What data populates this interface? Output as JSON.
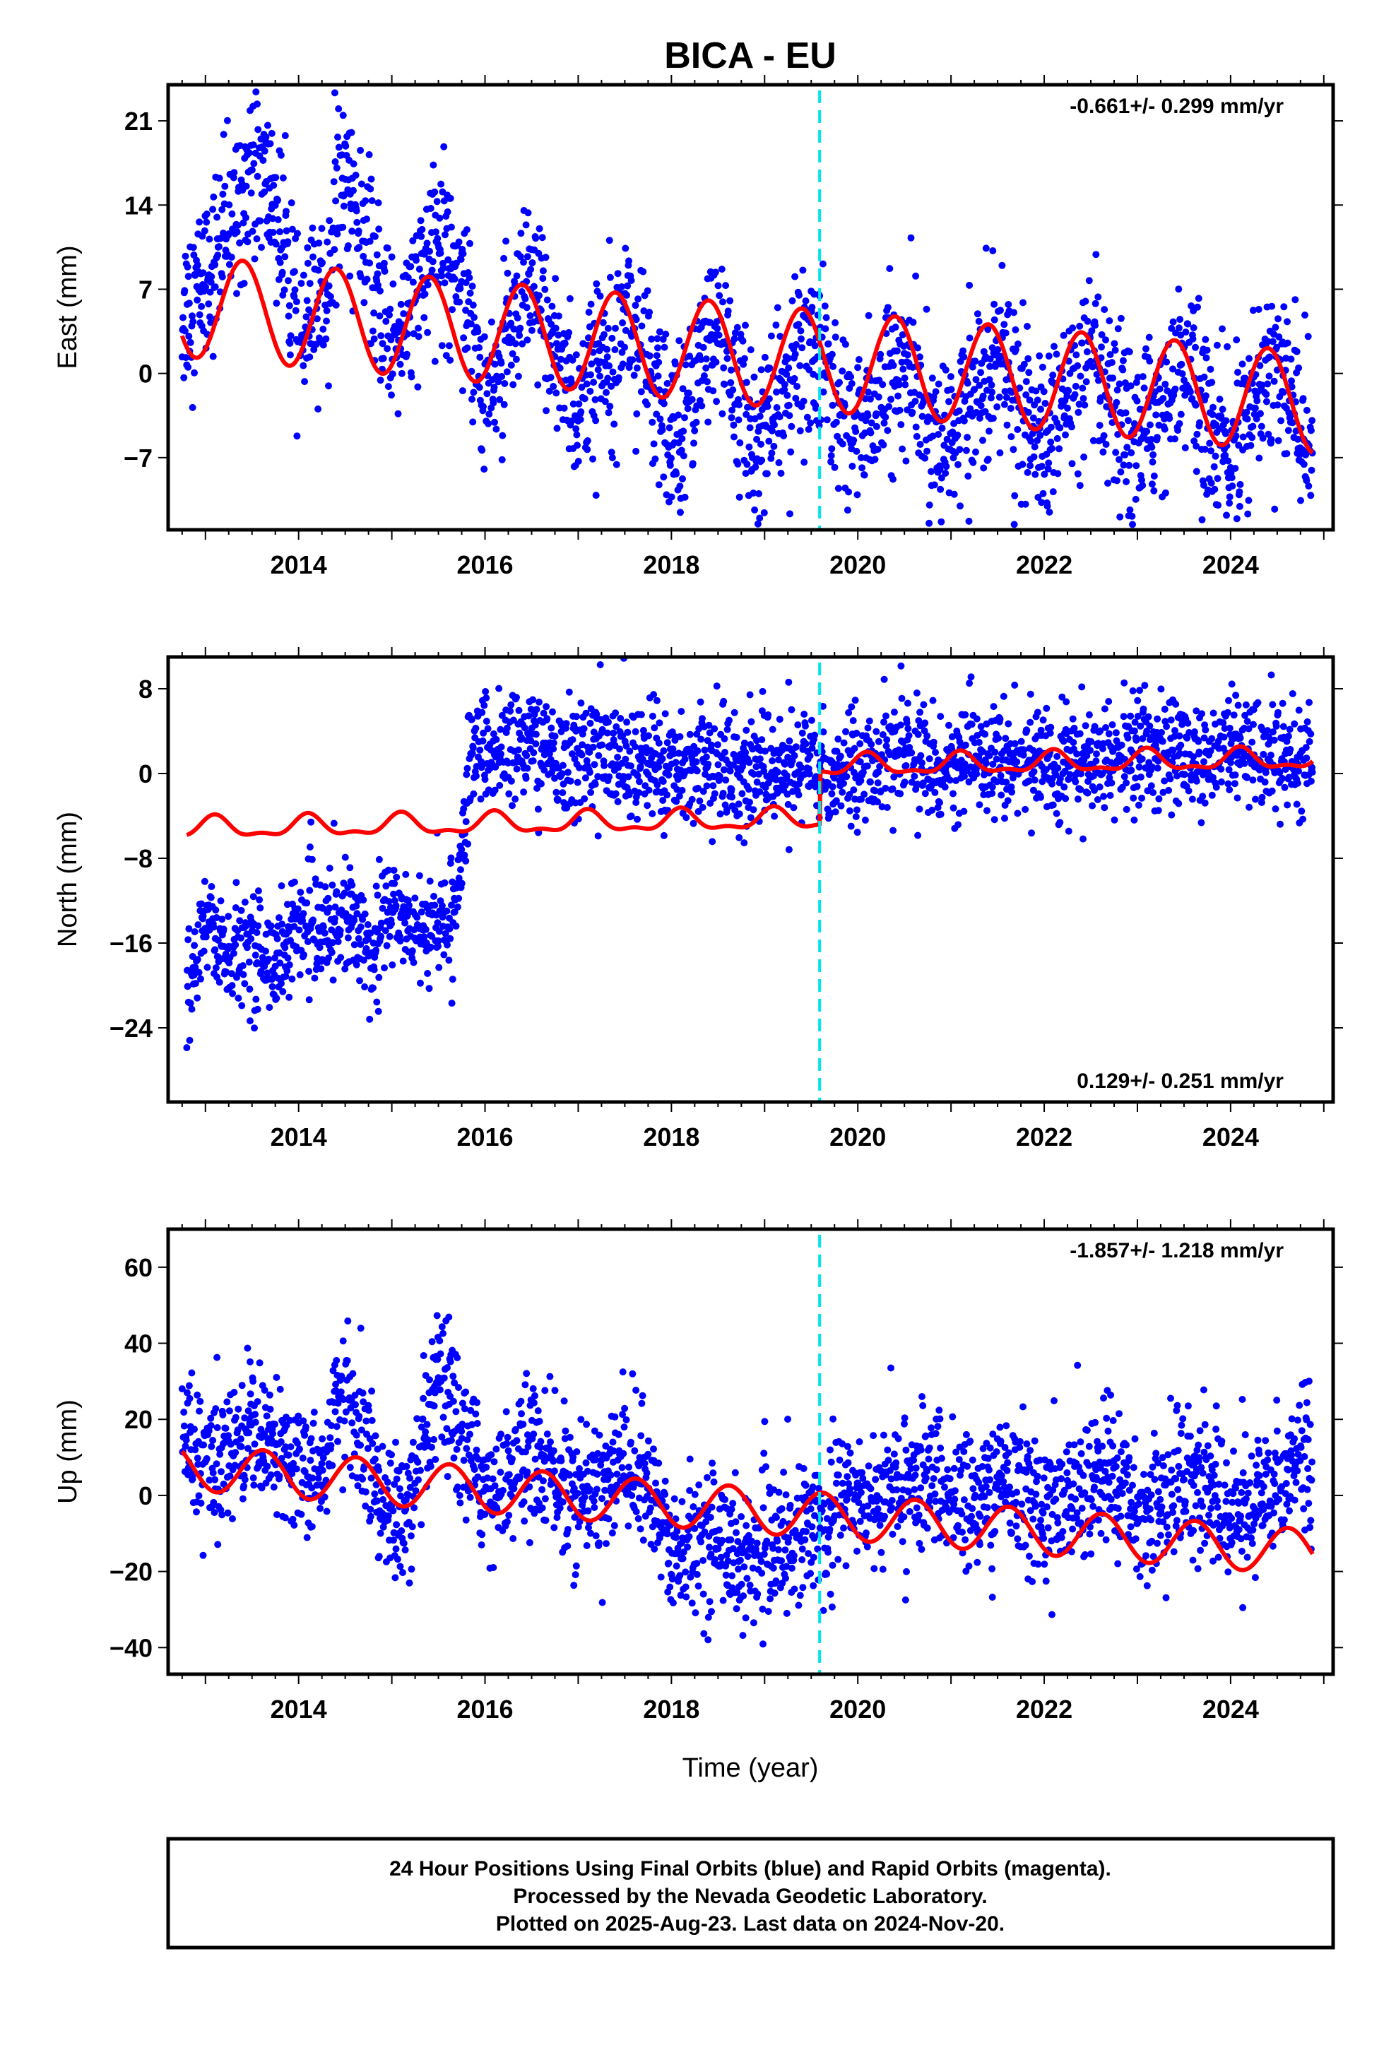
{
  "title": "BICA - EU",
  "xlabel": "Time (year)",
  "footer": {
    "line1": "24 Hour Positions Using Final Orbits (blue) and Rapid Orbits (magenta).",
    "line2": "Processed by the Nevada Geodetic Laboratory.",
    "line3": "Plotted on 2025-Aug-23. Last data on 2024-Nov-20."
  },
  "colors": {
    "observations": "#0000ff",
    "model": "#ff0000",
    "step_marker": "#00e5ee",
    "frame": "#000000"
  },
  "chart_data": [
    {
      "type": "scatter",
      "component": "East",
      "ylabel": "East (mm)",
      "rate_label": "-0.661+/- 0.299 mm/yr",
      "rate_position": "top-right",
      "xlim": [
        2012.6,
        2025.1
      ],
      "ylim": [
        -13,
        24
      ],
      "xticks": [
        2014,
        2016,
        2018,
        2020,
        2022,
        2024
      ],
      "yticks": [
        21,
        14,
        7,
        0,
        -7
      ],
      "step_marker_year": 2019.59,
      "grid": false,
      "series": [
        {
          "x": [
            2012.75,
            2013.0,
            2013.25,
            2013.5,
            2013.75,
            2014.0,
            2014.25,
            2014.5,
            2014.75,
            2015.0,
            2015.25,
            2015.5,
            2015.75,
            2016.0,
            2016.25,
            2016.5,
            2016.75,
            2017.0,
            2017.25,
            2017.5,
            2017.75,
            2018.0,
            2018.25,
            2018.5,
            2018.75,
            2019.0,
            2019.25,
            2019.5,
            2019.75,
            2020.0,
            2020.25,
            2020.5,
            2020.75,
            2021.0,
            2021.25,
            2021.5,
            2021.75,
            2022.0,
            2022.25,
            2022.5,
            2022.75,
            2023.0,
            2023.25,
            2023.5,
            2023.75,
            2024.0,
            2024.25,
            2024.5,
            2024.75,
            2024.88
          ],
          "y": [
            5,
            8,
            12,
            18,
            14,
            3,
            6,
            17,
            9,
            3,
            6,
            11,
            9,
            -2,
            2,
            7,
            2,
            -3,
            1,
            6,
            0,
            -6,
            0,
            4,
            -3,
            -6,
            -1,
            3,
            -2,
            -5,
            -2,
            1,
            -4,
            -6,
            -2,
            2,
            -3,
            -6,
            -2,
            1,
            -4,
            -6,
            -2,
            1,
            -4,
            -7,
            -3,
            1,
            -4,
            -6
          ],
          "spread": 3.5
        }
      ],
      "model": {
        "offset": 5.6,
        "trend": -0.661,
        "amplitude": 4.2,
        "phase_year": 2013.4,
        "semiannual_amp": 0.0,
        "breaks": [],
        "reference_year": 2012.75
      }
    },
    {
      "type": "scatter",
      "component": "North",
      "ylabel": "North (mm)",
      "rate_label": "0.129+/- 0.251 mm/yr",
      "rate_position": "bottom-right",
      "xlim": [
        2012.6,
        2025.1
      ],
      "ylim": [
        -31,
        11
      ],
      "xticks": [
        2014,
        2016,
        2018,
        2020,
        2022,
        2024
      ],
      "yticks": [
        8,
        0,
        -8,
        -16,
        -24
      ],
      "step_marker_year": 2019.59,
      "grid": false,
      "series": [
        {
          "x": [
            2012.8,
            2013.0,
            2013.25,
            2013.5,
            2013.75,
            2014.0,
            2014.25,
            2014.5,
            2014.75,
            2015.0,
            2015.25,
            2015.5,
            2015.7,
            2015.85,
            2016.0,
            2016.25,
            2016.5,
            2016.75,
            2017.0,
            2017.25,
            2017.5,
            2017.75,
            2018.0,
            2018.25,
            2018.5,
            2018.75,
            2019.0,
            2019.25,
            2019.5,
            2019.75,
            2020.0,
            2020.25,
            2020.5,
            2020.75,
            2021.0,
            2021.25,
            2021.5,
            2021.75,
            2022.0,
            2022.25,
            2022.5,
            2022.75,
            2023.0,
            2023.25,
            2023.5,
            2023.75,
            2024.0,
            2024.25,
            2024.5,
            2024.75,
            2024.88
          ],
          "y": [
            -22,
            -14,
            -17,
            -16,
            -18,
            -14,
            -15,
            -13,
            -16,
            -13,
            -14,
            -15,
            -12,
            2,
            2,
            2,
            3,
            1,
            2,
            2,
            1,
            1,
            0,
            1,
            1,
            0,
            1,
            0,
            1,
            0,
            1,
            1,
            2,
            1,
            1,
            2,
            1,
            1,
            1,
            1,
            1,
            1,
            2,
            2,
            2,
            1,
            2,
            2,
            2,
            1,
            2
          ],
          "spread": 2.6
        }
      ],
      "model": {
        "offset": -5.2,
        "trend": 0.129,
        "amplitude": 0.9,
        "phase_year": 2013.1,
        "semiannual_amp": 0.4,
        "breaks": [
          {
            "year": 2019.59,
            "offset": 5.0
          }
        ],
        "reference_year": 2012.75
      }
    },
    {
      "type": "scatter",
      "component": "Up",
      "ylabel": "Up (mm)",
      "rate_label": "-1.857+/- 1.218 mm/yr",
      "rate_position": "top-right",
      "xlim": [
        2012.6,
        2025.1
      ],
      "ylim": [
        -47,
        70
      ],
      "xticks": [
        2014,
        2016,
        2018,
        2020,
        2022,
        2024
      ],
      "yticks": [
        60,
        40,
        20,
        0,
        -20,
        -40
      ],
      "step_marker_year": 2019.59,
      "grid": false,
      "series": [
        {
          "x": [
            2012.75,
            2013.0,
            2013.25,
            2013.5,
            2013.75,
            2014.0,
            2014.25,
            2014.5,
            2014.75,
            2015.0,
            2015.25,
            2015.5,
            2015.75,
            2016.0,
            2016.25,
            2016.5,
            2016.75,
            2017.0,
            2017.25,
            2017.5,
            2017.75,
            2018.0,
            2018.25,
            2018.5,
            2018.75,
            2019.0,
            2019.25,
            2019.5,
            2019.75,
            2020.0,
            2020.25,
            2020.5,
            2020.75,
            2021.0,
            2021.25,
            2021.5,
            2021.75,
            2022.0,
            2022.25,
            2022.5,
            2022.75,
            2023.0,
            2023.25,
            2023.5,
            2023.75,
            2024.0,
            2024.25,
            2024.5,
            2024.75,
            2024.88
          ],
          "y": [
            15,
            8,
            12,
            20,
            12,
            5,
            8,
            30,
            10,
            -8,
            0,
            30,
            15,
            2,
            5,
            12,
            5,
            -2,
            2,
            10,
            2,
            -15,
            -12,
            -10,
            -18,
            -15,
            -12,
            -8,
            -2,
            0,
            0,
            3,
            5,
            0,
            -3,
            2,
            3,
            -5,
            -2,
            3,
            5,
            -5,
            -3,
            5,
            3,
            -5,
            -4,
            5,
            12,
            8
          ],
          "spread": 9.0
        }
      ],
      "model": {
        "offset": 7.5,
        "trend": -1.857,
        "amplitude": 6.0,
        "phase_year": 2013.62,
        "semiannual_amp": 0.0,
        "breaks": [],
        "reference_year": 2012.75
      }
    }
  ]
}
